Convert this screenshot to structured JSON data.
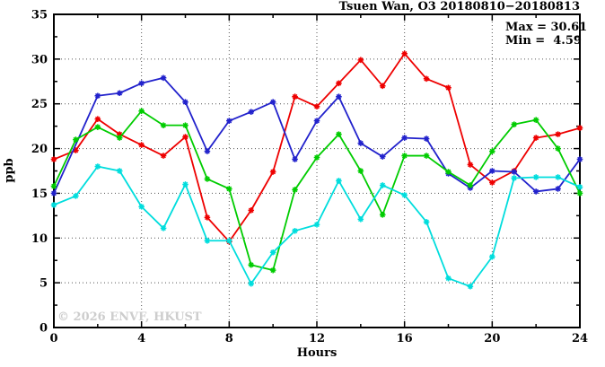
{
  "title": "Tsuen Wan, O3 20180810−20180813",
  "annotation": {
    "max_label": "Max = 30.61",
    "min_label": "Min =  4.59"
  },
  "watermark": "© 2026 ENVF, HKUST",
  "chart_data": {
    "type": "line",
    "title": "Tsuen Wan, O3 20180810−20180813",
    "xlabel": "Hours",
    "ylabel": "ppb",
    "xlim": [
      0,
      24
    ],
    "ylim": [
      0,
      35
    ],
    "x_major_ticks": [
      0,
      4,
      8,
      12,
      16,
      20,
      24
    ],
    "x_minor_step": 2,
    "y_major_ticks": [
      0,
      5,
      10,
      15,
      20,
      25,
      30,
      35
    ],
    "y_minor_step": 2.5,
    "grid": "dotted lines at interior major ticks, both axes",
    "legend_position": "none",
    "max_value": 30.61,
    "min_value": 4.59,
    "marker": "asterisk",
    "x": [
      0,
      1,
      2,
      3,
      4,
      5,
      6,
      7,
      8,
      9,
      10,
      11,
      12,
      13,
      14,
      15,
      16,
      17,
      18,
      19,
      20,
      21,
      22,
      23,
      24
    ],
    "series": [
      {
        "name": "red-line",
        "color": "#ee0000",
        "values": [
          18.8,
          19.8,
          23.3,
          21.6,
          20.4,
          19.2,
          21.3,
          12.3,
          9.6,
          13.1,
          17.4,
          25.8,
          24.7,
          27.3,
          29.9,
          27.0,
          30.61,
          27.8,
          26.8,
          18.2,
          16.2,
          17.5,
          21.2,
          21.6,
          22.3
        ]
      },
      {
        "name": "blue-line",
        "color": "#2222cc",
        "values": [
          15.0,
          null,
          25.9,
          26.2,
          27.3,
          27.9,
          25.2,
          19.7,
          23.1,
          24.1,
          25.2,
          18.8,
          23.1,
          25.8,
          20.6,
          19.1,
          21.2,
          21.1,
          17.2,
          15.6,
          17.5,
          17.4,
          15.2,
          15.5,
          18.8
        ]
      },
      {
        "name": "green-line",
        "color": "#00cc00",
        "values": [
          15.8,
          21.0,
          22.4,
          21.2,
          24.2,
          22.6,
          22.6,
          16.6,
          15.5,
          7.0,
          6.4,
          15.4,
          19.0,
          21.6,
          17.5,
          12.6,
          19.2,
          19.2,
          17.4,
          15.9,
          19.7,
          22.7,
          23.2,
          20.0,
          15.0
        ]
      },
      {
        "name": "cyan-line",
        "color": "#00dddd",
        "values": [
          13.7,
          14.7,
          18.0,
          17.5,
          13.5,
          11.1,
          16.0,
          9.7,
          9.7,
          4.9,
          8.4,
          10.8,
          11.5,
          16.4,
          12.1,
          15.9,
          14.8,
          11.8,
          5.5,
          4.59,
          7.9,
          16.7,
          16.8,
          16.8,
          15.7
        ]
      }
    ]
  }
}
